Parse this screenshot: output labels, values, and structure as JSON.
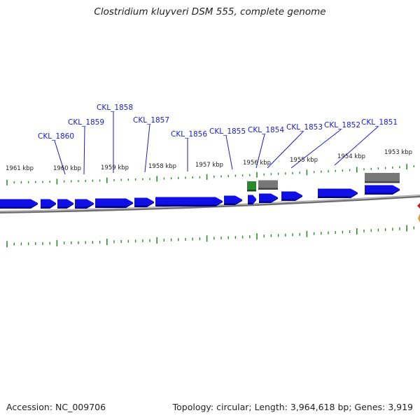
{
  "title": "Clostridium kluyveri DSM 555, complete genome",
  "footer": {
    "accession": "Accession: NC_009706",
    "summary": "Topology: circular; Length: 3,964,618 bp; Genes: 3,919"
  },
  "colors": {
    "cds": "#1010e6",
    "rna": "#2a8a2a",
    "other_feature": "#777777",
    "backbone": "#888888",
    "tick": "#2e8b2e",
    "label": "#1a1acc"
  },
  "scale_labels": [
    "1961 kbp",
    "1960 kbp",
    "1959 kbp",
    "1958 kbp",
    "1957 kbp",
    "1956 kbp",
    "1955 kbp",
    "1954 kbp",
    "1953 kbp"
  ],
  "gene_labels": [
    "CKL_1860",
    "CKL_1859",
    "CKL_1858",
    "CKL_1857",
    "CKL_1856",
    "CKL_1855",
    "CKL_1854",
    "CKL_1853",
    "CKL_1852",
    "CKL_1851"
  ]
}
